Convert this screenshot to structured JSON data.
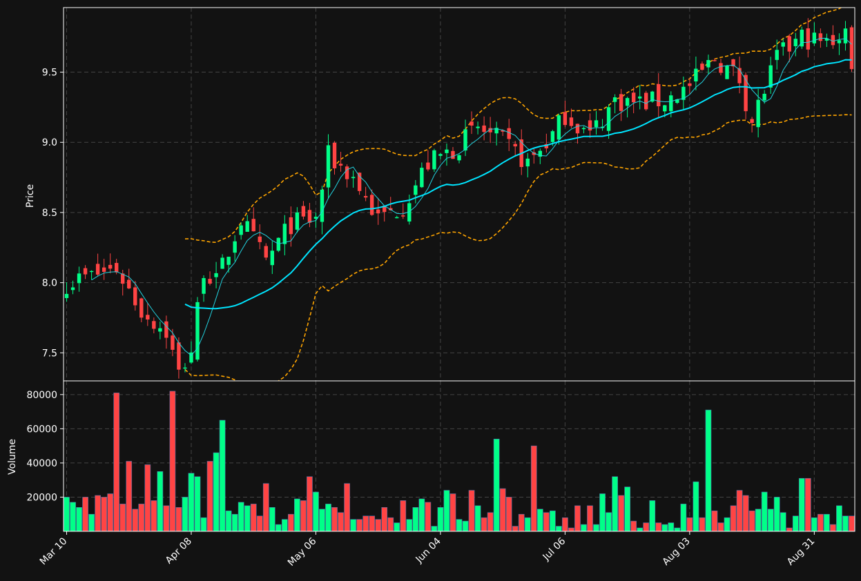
{
  "chart_data": {
    "type": "candlestick",
    "colors": {
      "background": "#121212",
      "up": "#00ff88",
      "down": "#ff4444",
      "ma_short": "#22d3e0",
      "ma_long": "#00e5ff",
      "bands": "#ffa500",
      "grid": "#444444",
      "frame": "#ffffff"
    },
    "price_panel": {
      "ylabel": "Price",
      "ylim": [
        7.3,
        9.96
      ],
      "yticks": [
        7.5,
        8.0,
        8.5,
        9.0,
        9.5
      ],
      "ytick_labels": [
        "7.5",
        "8.0",
        "8.5",
        "9.0",
        "9.5"
      ],
      "grid": true
    },
    "volume_panel": {
      "ylabel": "Volume",
      "ylim": [
        0,
        88000
      ],
      "yticks": [
        20000,
        40000,
        60000,
        80000
      ],
      "ytick_labels": [
        "20000",
        "40000",
        "60000",
        "80000"
      ],
      "grid": true
    },
    "xtick_labels": [
      {
        "label": "Mar 10",
        "index": 0
      },
      {
        "label": "Apr 08",
        "index": 20
      },
      {
        "label": "May 06",
        "index": 40
      },
      {
        "label": "Jun 04",
        "index": 60
      },
      {
        "label": "Jul 06",
        "index": 80
      },
      {
        "label": "Aug 03",
        "index": 100
      },
      {
        "label": "Aug 31",
        "index": 120
      }
    ],
    "price_anchors": [
      [
        0,
        8.0
      ],
      [
        4,
        8.05
      ],
      [
        8,
        8.1
      ],
      [
        12,
        7.8
      ],
      [
        16,
        7.65
      ],
      [
        18,
        7.35
      ],
      [
        20,
        7.52
      ],
      [
        22,
        8.1
      ],
      [
        24,
        8.0
      ],
      [
        28,
        8.45
      ],
      [
        32,
        8.15
      ],
      [
        36,
        8.42
      ],
      [
        40,
        8.45
      ],
      [
        42,
        8.9
      ],
      [
        46,
        8.75
      ],
      [
        50,
        8.45
      ],
      [
        54,
        8.55
      ],
      [
        58,
        8.85
      ],
      [
        62,
        8.95
      ],
      [
        66,
        9.1
      ],
      [
        70,
        9.0
      ],
      [
        74,
        8.85
      ],
      [
        78,
        9.05
      ],
      [
        80,
        9.2
      ],
      [
        84,
        9.05
      ],
      [
        88,
        9.3
      ],
      [
        92,
        9.28
      ],
      [
        96,
        9.3
      ],
      [
        100,
        9.4
      ],
      [
        104,
        9.6
      ],
      [
        108,
        9.45
      ],
      [
        110,
        9.15
      ],
      [
        114,
        9.6
      ],
      [
        118,
        9.75
      ],
      [
        122,
        9.7
      ],
      [
        125,
        9.8
      ],
      [
        126,
        9.5
      ]
    ],
    "volume_values": [
      20000,
      17000,
      14000,
      20000,
      10000,
      21000,
      20000,
      22000,
      81000,
      16000,
      41000,
      13000,
      16000,
      39000,
      18000,
      35000,
      15000,
      82000,
      14000,
      20000,
      34000,
      32000,
      8000,
      41000,
      46000,
      65000,
      12000,
      10000,
      17000,
      15000,
      16000,
      9000,
      28000,
      14000,
      4000,
      7000,
      10000,
      19000,
      18000,
      32000,
      23000,
      13000,
      16000,
      14000,
      11000,
      28000,
      7000,
      7000,
      9000,
      9000,
      7000,
      14000,
      8000,
      5000,
      18000,
      7000,
      14000,
      19000,
      17000,
      3000,
      14000,
      24000,
      22000,
      7000,
      6000,
      24000,
      15000,
      8000,
      11000,
      54000,
      25000,
      20000,
      3000,
      10000,
      8000,
      50000,
      13000,
      11000,
      12000,
      3000,
      8000,
      2000,
      15000,
      4000,
      15000,
      4000,
      22000,
      11000,
      32000,
      21000,
      26000,
      6000,
      2000,
      5000,
      18000,
      5000,
      4000,
      5000,
      2000,
      16000,
      8000,
      29000,
      8000,
      71000,
      12000,
      5000,
      8000,
      15000,
      24000,
      21000,
      12000,
      13000,
      23000,
      13000,
      20000,
      11000,
      2000,
      9000,
      31000,
      31000,
      8000,
      10000,
      10000,
      4000,
      15000,
      9000,
      9000
    ],
    "moving_average_short_period": 5,
    "moving_average_long_period": 20,
    "bollinger_period": 20
  }
}
